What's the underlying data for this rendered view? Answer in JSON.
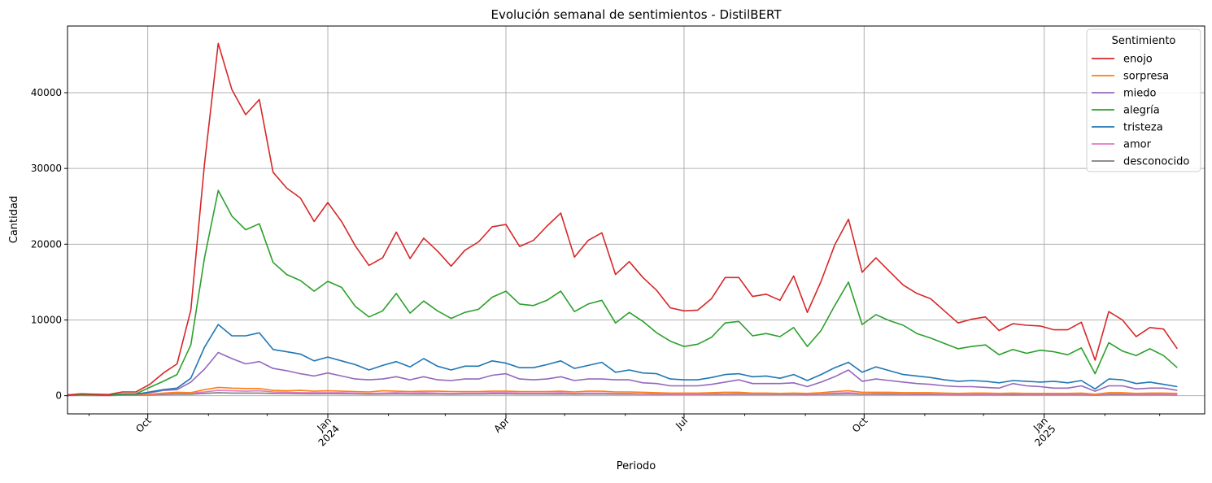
{
  "chart_data": {
    "type": "line",
    "title": "Evolución semanal de sentimientos - DistilBERT",
    "xlabel": "Periodo",
    "ylabel": "Cantidad",
    "x_start": "2023-08-21",
    "x_step_days": 7,
    "xlim": [
      "2023-08-21",
      "2025-03-24"
    ],
    "ylim": [
      -2400,
      48800
    ],
    "yticks": [
      0,
      10000,
      20000,
      30000,
      40000
    ],
    "xticks": [
      {
        "date": "2023-10-01",
        "label": "Oct",
        "label2": ""
      },
      {
        "date": "2024-01-01",
        "label": "Jan",
        "label2": "2024"
      },
      {
        "date": "2024-04-01",
        "label": "Apr",
        "label2": ""
      },
      {
        "date": "2024-07-01",
        "label": "Jul",
        "label2": ""
      },
      {
        "date": "2024-10-01",
        "label": "Oct",
        "label2": ""
      },
      {
        "date": "2025-01-01",
        "label": "Jan",
        "label2": "2025"
      }
    ],
    "minor_xticks": [
      "2023-09-01",
      "2023-11-01",
      "2023-12-01",
      "2024-02-01",
      "2024-03-01",
      "2024-05-01",
      "2024-06-01",
      "2024-08-01",
      "2024-09-01",
      "2024-11-01",
      "2024-12-01",
      "2025-02-01",
      "2025-03-01"
    ],
    "grid": true,
    "legend": {
      "title": "Sentimiento",
      "placement": "top-right"
    },
    "series": [
      {
        "name": "enojo",
        "color": "#d62728",
        "values": [
          100,
          250,
          200,
          150,
          500,
          500,
          1500,
          3000,
          4200,
          11300,
          30600,
          46500,
          40400,
          37100,
          39100,
          29500,
          27400,
          26100,
          23000,
          25500,
          23000,
          19800,
          17200,
          18200,
          21600,
          18100,
          20800,
          19100,
          17100,
          19200,
          20300,
          22300,
          22600,
          19700,
          20500,
          22400,
          24100,
          18300,
          20500,
          21500,
          16000,
          17700,
          15600,
          13900,
          11600,
          11200,
          11300,
          12800,
          15600,
          15600,
          13100,
          13400,
          12600,
          15800,
          11000,
          15100,
          19900,
          23300,
          16300,
          18200,
          16400,
          14600,
          13500,
          12800,
          11200,
          9600,
          10100,
          10400,
          8600,
          9500,
          9300,
          9200,
          8700,
          8700,
          9700,
          4700,
          11100,
          10000,
          7800,
          9000,
          8800,
          6200
        ]
      },
      {
        "name": "sorpresa",
        "color": "#ff7f0e",
        "values": [
          50,
          100,
          80,
          50,
          150,
          150,
          200,
          350,
          450,
          400,
          800,
          1100,
          1000,
          950,
          950,
          700,
          650,
          700,
          600,
          650,
          600,
          550,
          500,
          650,
          600,
          550,
          600,
          600,
          550,
          550,
          550,
          600,
          600,
          550,
          550,
          550,
          600,
          500,
          600,
          600,
          500,
          500,
          450,
          400,
          350,
          350,
          350,
          400,
          450,
          450,
          350,
          350,
          300,
          350,
          300,
          400,
          550,
          650,
          450,
          450,
          450,
          400,
          400,
          400,
          350,
          300,
          350,
          350,
          300,
          350,
          300,
          300,
          300,
          300,
          350,
          200,
          400,
          400,
          300,
          350,
          350,
          300
        ]
      },
      {
        "name": "miedo",
        "color": "#9467bd",
        "values": [
          50,
          100,
          100,
          50,
          200,
          200,
          400,
          700,
          800,
          1800,
          3500,
          5700,
          4900,
          4200,
          4500,
          3600,
          3300,
          2900,
          2600,
          3000,
          2600,
          2200,
          2100,
          2200,
          2500,
          2100,
          2500,
          2100,
          2000,
          2200,
          2200,
          2700,
          2900,
          2200,
          2100,
          2200,
          2500,
          2000,
          2200,
          2200,
          2100,
          2100,
          1700,
          1600,
          1300,
          1300,
          1300,
          1500,
          1800,
          2100,
          1600,
          1600,
          1600,
          1700,
          1200,
          1800,
          2500,
          3400,
          1900,
          2200,
          2000,
          1800,
          1600,
          1500,
          1300,
          1200,
          1200,
          1100,
          1000,
          1600,
          1300,
          1200,
          1000,
          1000,
          1300,
          600,
          1300,
          1300,
          900,
          1000,
          1000,
          700
        ]
      },
      {
        "name": "alegría",
        "color": "#2ca02c",
        "values": [
          50,
          150,
          100,
          50,
          250,
          250,
          1100,
          1900,
          2800,
          6700,
          18200,
          27100,
          23700,
          21900,
          22700,
          17600,
          16000,
          15200,
          13800,
          15100,
          14300,
          11800,
          10400,
          11200,
          13500,
          10900,
          12500,
          11200,
          10200,
          11000,
          11400,
          13000,
          13800,
          12100,
          11900,
          12600,
          13800,
          11100,
          12100,
          12600,
          9600,
          11000,
          9800,
          8300,
          7200,
          6500,
          6800,
          7700,
          9600,
          9800,
          7900,
          8200,
          7800,
          9000,
          6500,
          8600,
          11900,
          15000,
          9400,
          10700,
          9900,
          9300,
          8200,
          7600,
          6900,
          6200,
          6500,
          6700,
          5400,
          6100,
          5600,
          6000,
          5800,
          5400,
          6300,
          2900,
          7000,
          5900,
          5300,
          6200,
          5300,
          3700
        ]
      },
      {
        "name": "tristeza",
        "color": "#1f77b4",
        "values": [
          50,
          150,
          100,
          50,
          200,
          200,
          500,
          800,
          1000,
          2300,
          6400,
          9400,
          7900,
          7900,
          8300,
          6100,
          5800,
          5500,
          4600,
          5100,
          4600,
          4100,
          3400,
          4000,
          4500,
          3800,
          4900,
          3900,
          3400,
          3900,
          3900,
          4600,
          4300,
          3700,
          3700,
          4100,
          4600,
          3600,
          4000,
          4400,
          3100,
          3400,
          3000,
          2900,
          2200,
          2100,
          2100,
          2400,
          2800,
          2900,
          2500,
          2600,
          2300,
          2800,
          2000,
          2800,
          3700,
          4400,
          3100,
          3800,
          3300,
          2800,
          2600,
          2400,
          2100,
          1900,
          2000,
          1900,
          1700,
          2000,
          1900,
          1800,
          1900,
          1700,
          2000,
          900,
          2200,
          2100,
          1600,
          1800,
          1500,
          1200
        ]
      },
      {
        "name": "amor",
        "color": "#e377c2",
        "values": [
          30,
          60,
          50,
          30,
          100,
          100,
          150,
          250,
          350,
          350,
          500,
          700,
          650,
          600,
          650,
          500,
          450,
          400,
          400,
          400,
          400,
          350,
          300,
          350,
          400,
          350,
          400,
          350,
          300,
          350,
          350,
          400,
          400,
          350,
          350,
          350,
          400,
          300,
          350,
          350,
          300,
          300,
          250,
          250,
          200,
          200,
          200,
          250,
          250,
          300,
          250,
          250,
          250,
          250,
          200,
          250,
          350,
          400,
          250,
          300,
          300,
          250,
          250,
          250,
          200,
          200,
          200,
          200,
          200,
          250,
          200,
          200,
          200,
          200,
          200,
          150,
          250,
          250,
          200,
          200,
          200,
          150
        ]
      },
      {
        "name": "desconocido",
        "color": "#7f7f7f",
        "values": [
          20,
          40,
          30,
          20,
          60,
          60,
          100,
          150,
          200,
          200,
          300,
          400,
          350,
          350,
          350,
          300,
          280,
          260,
          250,
          260,
          250,
          230,
          200,
          220,
          250,
          220,
          240,
          220,
          200,
          220,
          220,
          250,
          250,
          220,
          220,
          220,
          240,
          200,
          220,
          220,
          200,
          200,
          180,
          170,
          150,
          150,
          150,
          160,
          170,
          180,
          160,
          160,
          160,
          170,
          140,
          160,
          200,
          230,
          160,
          180,
          170,
          160,
          150,
          150,
          140,
          130,
          130,
          130,
          120,
          140,
          120,
          120,
          120,
          120,
          130,
          90,
          140,
          140,
          120,
          120,
          120,
          100
        ]
      }
    ]
  }
}
